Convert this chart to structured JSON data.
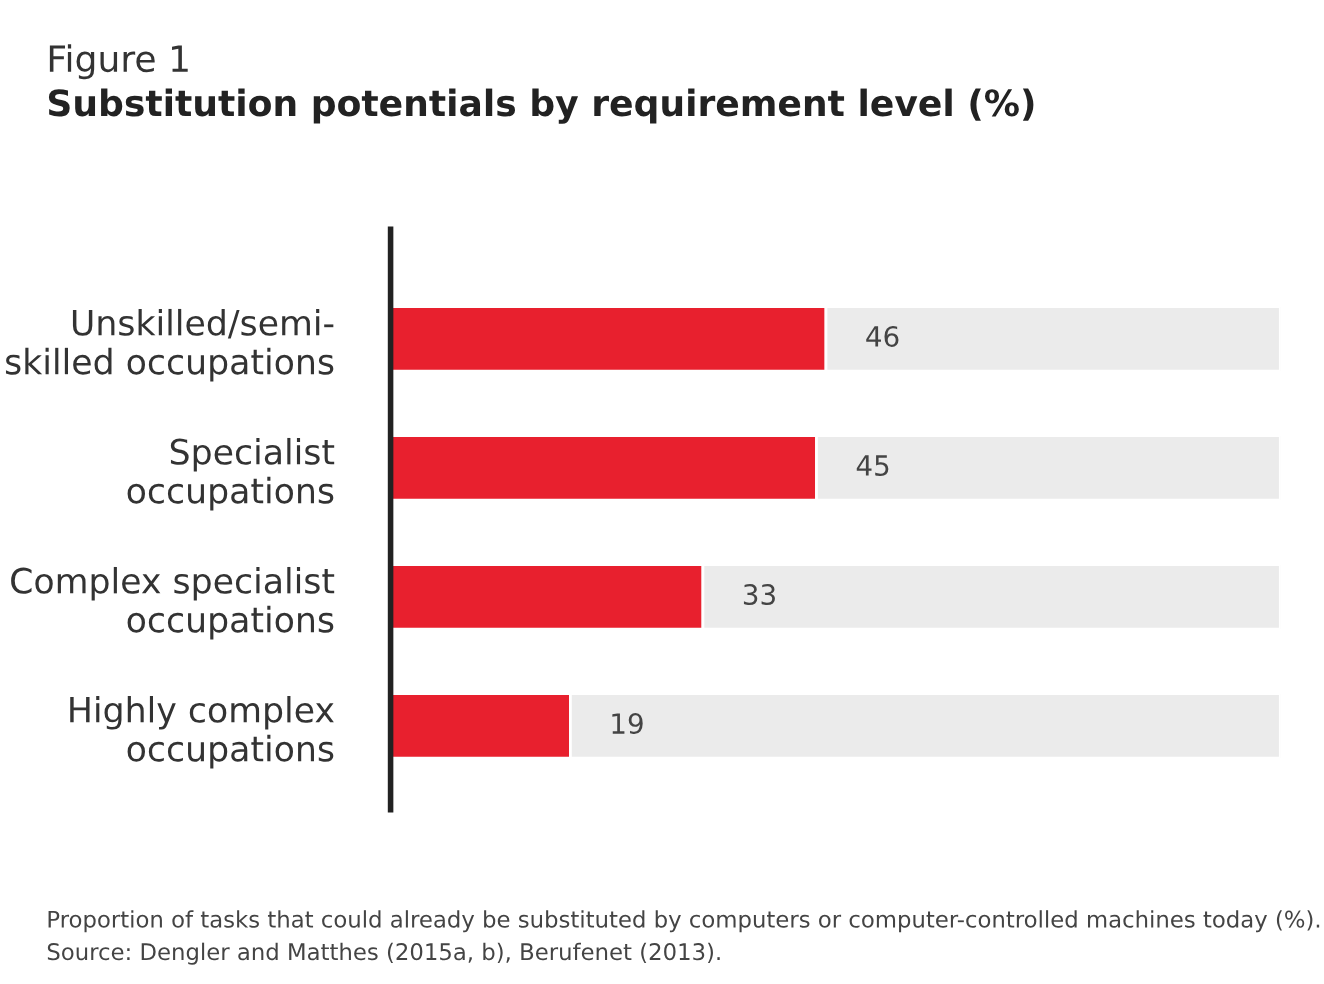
{
  "chart_data": {
    "type": "bar",
    "orientation": "horizontal",
    "stacked": true,
    "title": "Figure 1",
    "subtitle": "Substitution potentials by requirement level (%)",
    "categories": [
      "Unskilled/semi-\nskilled occupations",
      "Specialist\noccupations",
      "Complex specialist\noccupations",
      "Highly complex\noccupations"
    ],
    "series": [
      {
        "color": "#e8202e",
        "values": [
          46,
          45,
          33,
          19
        ],
        "value_labels": [
          "46",
          "45",
          "33",
          "19"
        ]
      },
      {
        "color": "#ebebeb",
        "values": [
          48,
          49,
          61,
          75
        ]
      }
    ],
    "xlim": [
      0,
      94
    ],
    "tick_labels": "y",
    "grid": false,
    "legend": false,
    "annotations": [
      "Proportion of tasks that could already be substituted by computers or computer-controlled machines today (%).",
      "Source: Dengler and Matthes (2015a, b), Berufenet (2013)."
    ]
  }
}
